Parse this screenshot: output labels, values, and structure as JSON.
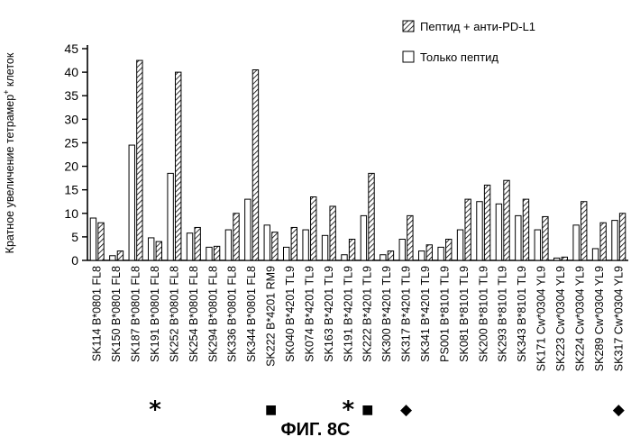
{
  "chart_data": {
    "type": "bar",
    "title": "",
    "xlabel": "",
    "ylabel": "Кратное увеличение тетрамер",
    "ylabel_superscript": "+",
    "ylabel_suffix": " клеток",
    "ylim": [
      0,
      45
    ],
    "yticks": [
      0,
      5,
      10,
      15,
      20,
      25,
      30,
      35,
      40,
      45
    ],
    "legend_position": "top-right",
    "categories": [
      "SK114 B*0801 FL8",
      "SK150 B*0801 FL8",
      "SK187 B*0801 FL8",
      "SK191 B*0801 FL8",
      "SK252 B*0801 FL8",
      "SK254 B*0801 FL8",
      "SK294 B*0801 FL8",
      "SK336 B*0801 FL8",
      "SK344 B*0801 FL8",
      "SK222 B*4201 RM9",
      "SK040 B*4201 TL9",
      "SK074 B*4201 TL9",
      "SK163 B*4201 TL9",
      "SK191 B*4201 TL9",
      "SK222 B*4201 TL9",
      "SK300 B*4201 TL9",
      "SK317 B*4201 TL9",
      "SK341 B*4201 TL9",
      "PS001 B*8101 TL9",
      "SK081 B*8101 TL9",
      "SK200 B*8101 TL9",
      "SK293 B*8101 TL9",
      "SK343 B*8101 TL9",
      "SK171 Cw*0304 YL9",
      "SK223 Cw*0304 YL9",
      "SK224 Cw*0304 YL9",
      "SK289 Cw*0304 YL9",
      "SK317 Cw*0304 YL9"
    ],
    "series": [
      {
        "name": "Только пептид",
        "style": "open",
        "values": [
          9,
          1,
          24.5,
          4.8,
          18.5,
          5.8,
          2.8,
          6.5,
          13,
          7.5,
          2.8,
          6.5,
          5.3,
          1.2,
          9.5,
          1.2,
          4.5,
          2,
          2.8,
          6.5,
          12.5,
          12,
          9.5,
          6.5,
          0.5,
          7.5,
          2.5,
          8.5
        ]
      },
      {
        "name": "Пептид + анти-PD-L1",
        "style": "hatched",
        "values": [
          8,
          2,
          42.5,
          4,
          40,
          7,
          3,
          10,
          40.5,
          6,
          7,
          13.5,
          11.5,
          4.5,
          18.5,
          2,
          9.5,
          3.3,
          4.5,
          13,
          16,
          17,
          13,
          9.3,
          0.7,
          12.5,
          8,
          10
        ]
      }
    ],
    "markers": [
      {
        "category_index": 3,
        "symbol": "*"
      },
      {
        "category_index": 9,
        "symbol": "■"
      },
      {
        "category_index": 13,
        "symbol": "*"
      },
      {
        "category_index": 14,
        "symbol": "■"
      },
      {
        "category_index": 16,
        "symbol": "◆"
      },
      {
        "category_index": 27,
        "symbol": "◆"
      }
    ],
    "figure_caption": "ФИГ. 8С"
  }
}
